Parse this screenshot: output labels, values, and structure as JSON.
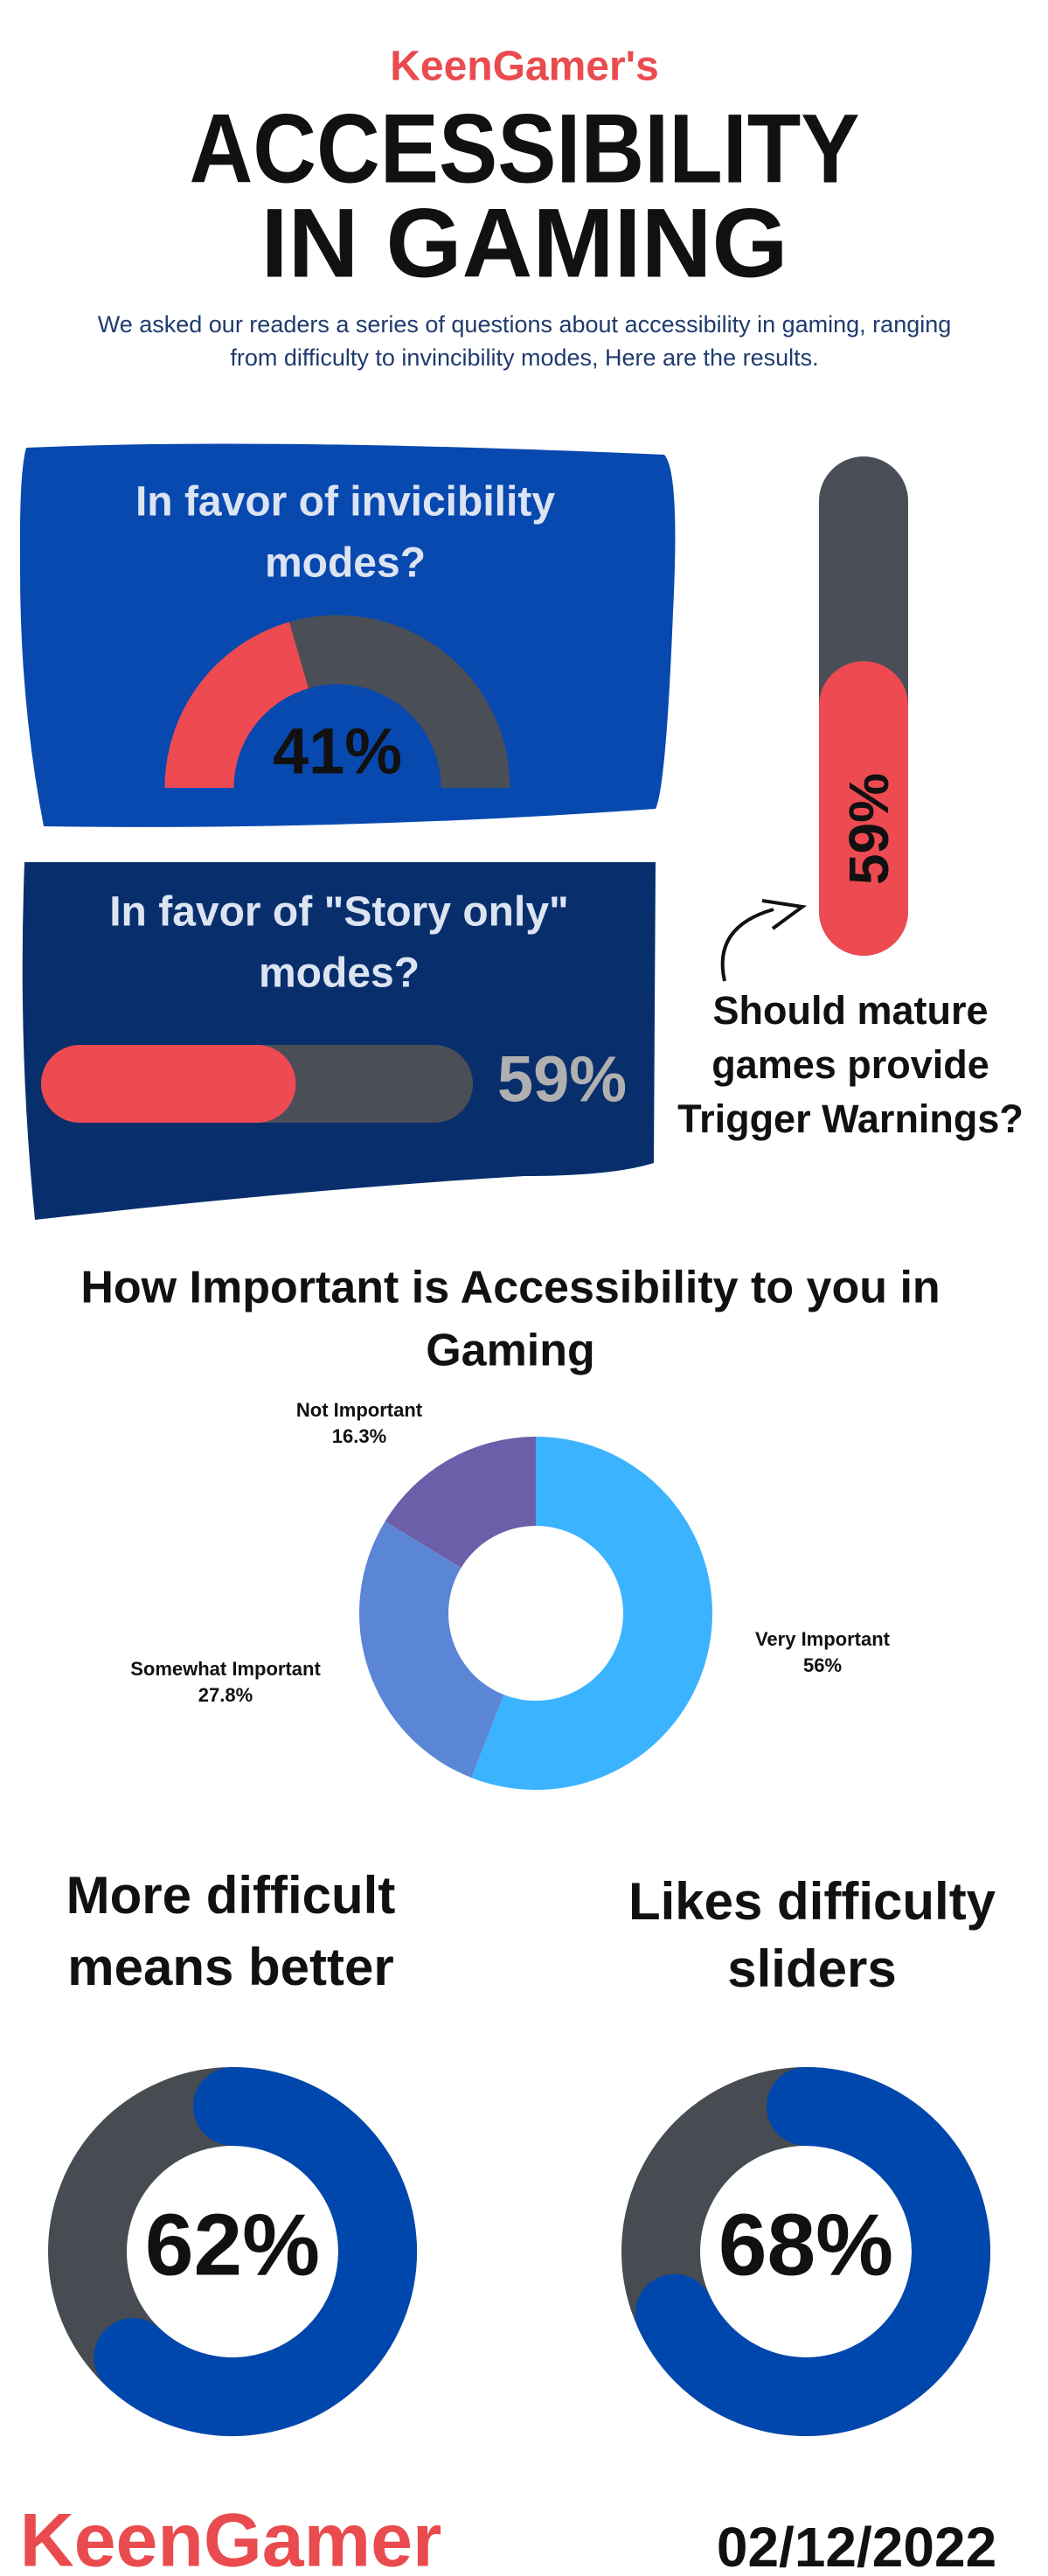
{
  "header": {
    "brand": "KeenGamer's",
    "title_lines": [
      "ACCESSIBILITY",
      "IN GAMING"
    ],
    "subtitle_lines": [
      "We asked our readers a series of questions about accessibility in gaming, ranging",
      "from difficulty to invincibility modes, Here are the results."
    ]
  },
  "chart_data": [
    {
      "type": "gauge",
      "title_lines": [
        "In favor of invicibility",
        "modes?"
      ],
      "value": 41,
      "value_label": "41%",
      "color": "#ee4a52",
      "track_color": "#4a4e57"
    },
    {
      "type": "progress",
      "title_lines": [
        "In favor of \"Story only\"",
        "modes?"
      ],
      "value": 59,
      "value_label": "59%",
      "color": "#ee4a52",
      "track_color": "#4a4e57"
    },
    {
      "type": "vertical-progress",
      "title_lines": [
        "Should mature",
        "games provide",
        "Trigger Warnings?"
      ],
      "value": 59,
      "value_label": "59%",
      "color": "#ee4a52",
      "track_color": "#4a4e57"
    },
    {
      "type": "donut",
      "title_lines": [
        "How Important is Accessibility to you in",
        "Gaming"
      ],
      "categories": [
        "Very Important",
        "Somewhat Important",
        "Not Important"
      ],
      "values": [
        56,
        27.8,
        16.3
      ],
      "value_labels": [
        "56%",
        "27.8%",
        "16.3%"
      ],
      "colors": [
        "#3bb3ff",
        "#5b86d6",
        "#6c5ea8"
      ]
    },
    {
      "type": "ring",
      "title_lines": [
        "More difficult",
        "means better"
      ],
      "value": 62,
      "value_label": "62%",
      "color": "#0047ad",
      "track_color": "#474b52"
    },
    {
      "type": "ring",
      "title_lines": [
        "Likes difficulty",
        "sliders"
      ],
      "value": 68,
      "value_label": "68%",
      "color": "#0047ad",
      "track_color": "#474b52"
    }
  ],
  "footer": {
    "brand": "KeenGamer",
    "date": "02/12/2022"
  }
}
